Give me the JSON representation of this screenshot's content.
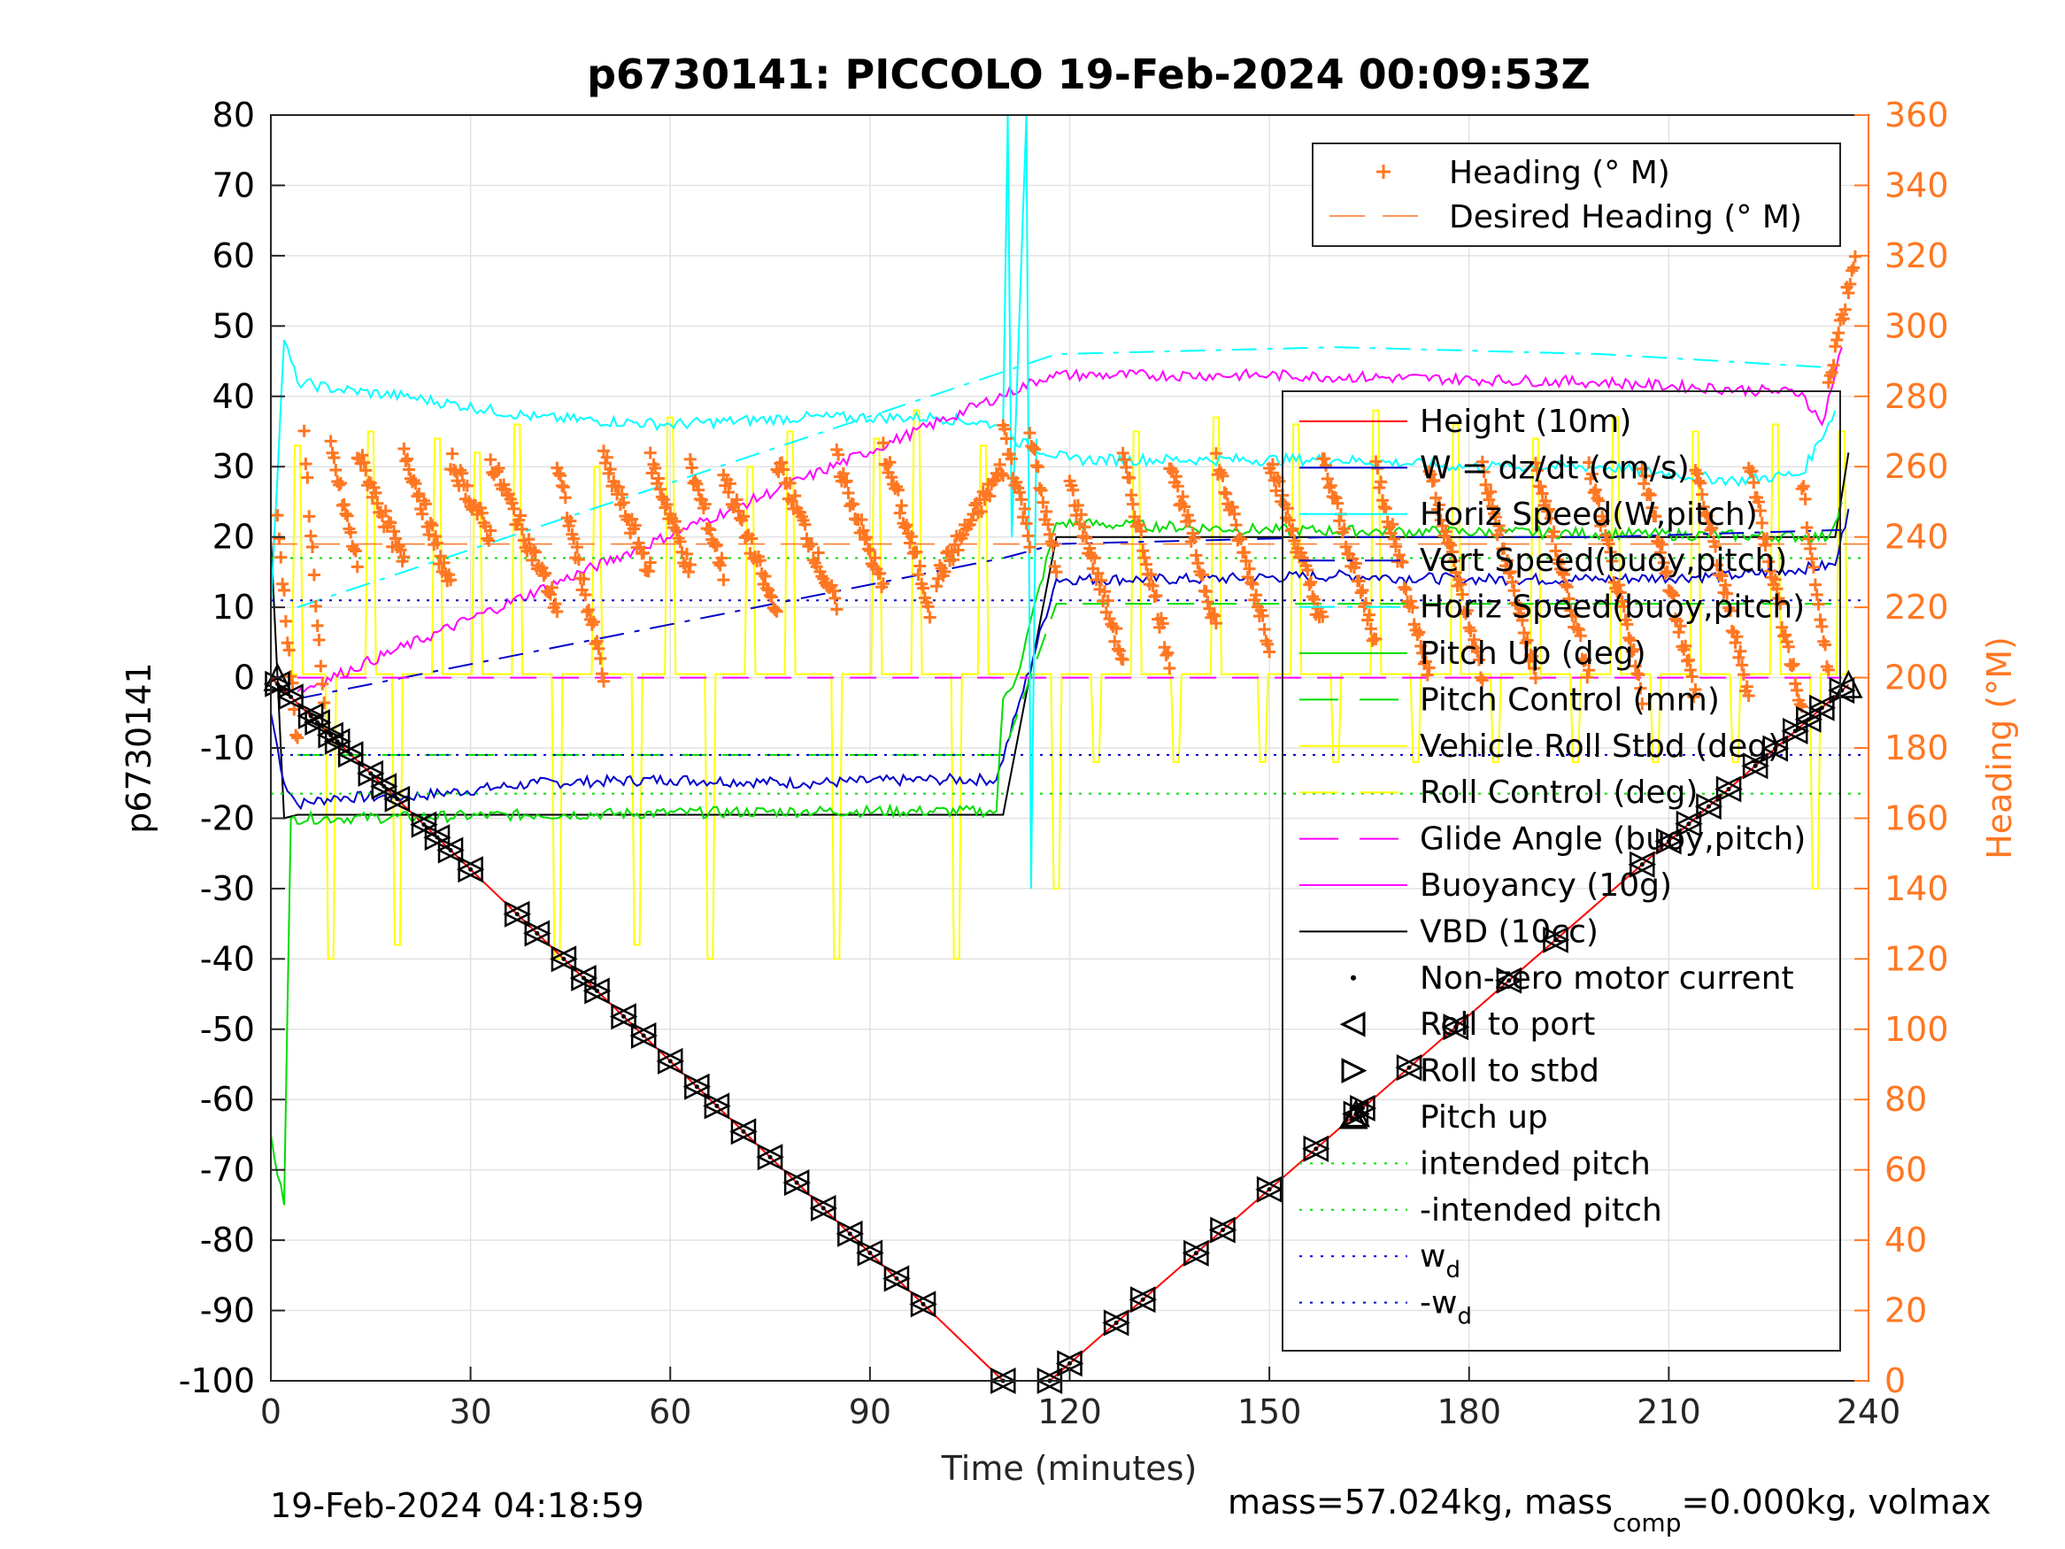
{
  "chart_data": {
    "type": "line",
    "title": "p6730141: PICCOLO 19-Feb-2024 00:09:53Z",
    "xlabel": "Time (minutes)",
    "ylabel": "p6730141",
    "y2label": "Heading (°M)",
    "xlim": [
      0,
      240
    ],
    "ylim": [
      -100,
      80
    ],
    "y2lim": [
      0,
      360
    ],
    "x_ticks": [
      "0",
      "30",
      "60",
      "90",
      "120",
      "150",
      "180",
      "210",
      "240"
    ],
    "y_ticks": [
      "-100",
      "-90",
      "-80",
      "-70",
      "-60",
      "-50",
      "-40",
      "-30",
      "-20",
      "-10",
      "0",
      "10",
      "20",
      "30",
      "40",
      "50",
      "60",
      "70",
      "80"
    ],
    "y2_ticks": [
      "0",
      "20",
      "40",
      "60",
      "80",
      "100",
      "120",
      "140",
      "160",
      "180",
      "200",
      "220",
      "240",
      "260",
      "280",
      "300",
      "320",
      "340",
      "360"
    ],
    "grid": true,
    "legend_top": [
      "Heading (° M)",
      "Desired Heading (° M)"
    ],
    "legend_main": [
      "Height (10m)",
      "W = dz/dt (cm/s)",
      "Horiz Speed(W,pitch)",
      "Vert Speed(buoy,pitch)",
      "Horiz Speed(buoy,pitch)",
      "Pitch Up (deg)",
      "Pitch Control (mm)",
      "Vehicle Roll Stbd (deg)",
      "Roll Control (deg)",
      "Glide Angle (buoy,pitch)",
      "Buoyancy (10g)",
      "VBD (10cc)",
      "Non-zero motor current",
      "Roll to port",
      "Roll to stbd",
      "Pitch up",
      "intended pitch",
      "-intended pitch",
      "w_d",
      "-w_d"
    ],
    "wd_label_base": "w",
    "wd_label_sub": "d",
    "neg_wd_label_base": "-w",
    "footer_left": "19-Feb-2024 04:18:59",
    "footer_right_a": "mass=57.024kg, mass",
    "footer_right_sub": "comp",
    "footer_right_b": "=0.000kg, volmax",
    "series": [
      {
        "name": "Height (10m)",
        "color": "#ff0000",
        "x": [
          0,
          110,
          117,
          237
        ],
        "y": [
          0,
          -100,
          -100,
          -1
        ]
      },
      {
        "name": "VBD (10cc)",
        "color": "#000000",
        "x": [
          0,
          2,
          4,
          20,
          110,
          118,
          235,
          237
        ],
        "y": [
          20,
          -20,
          -19.5,
          -19.5,
          -19.5,
          20,
          20,
          32
        ]
      },
      {
        "name": "W = dz/dt (cm/s)",
        "color": "#0000cc",
        "x": [
          0,
          2,
          4,
          10,
          20,
          40,
          60,
          80,
          100,
          109,
          112,
          118,
          140,
          160,
          180,
          200,
          220,
          235,
          237
        ],
        "y": [
          -5,
          -15,
          -18,
          -17,
          -17,
          -15,
          -14.5,
          -15,
          -14.5,
          -14.5,
          -5,
          14,
          14,
          14.5,
          14,
          14,
          14.5,
          16,
          24
        ]
      },
      {
        "name": "Pitch Up (deg)",
        "color": "#00dd00",
        "x": [
          0,
          2,
          3,
          10,
          40,
          80,
          109,
          110,
          112,
          118,
          150,
          200,
          234,
          236
        ],
        "y": [
          -65,
          -75,
          -20,
          -20,
          -19.5,
          -19,
          -19,
          -3,
          0,
          22,
          21,
          20.5,
          20,
          25
        ]
      },
      {
        "name": "Horiz Speed(W,pitch)",
        "color": "#00ffff",
        "x": [
          0,
          2,
          4,
          10,
          20,
          40,
          60,
          80,
          100,
          109
        ],
        "y": [
          10,
          48,
          42,
          41,
          40,
          37,
          36,
          37,
          37,
          36
        ]
      },
      {
        "name": "Horiz Speed(W,pitch) asc",
        "color": "#00ffff",
        "x": [
          111,
          120,
          140,
          160,
          180,
          200,
          220,
          230,
          235
        ],
        "y": [
          34,
          31,
          31,
          31,
          30,
          30,
          28,
          29,
          38
        ]
      },
      {
        "name": "Vert Speed(buoy,pitch)",
        "color": "#0000cc",
        "dash": "28,12,6,12",
        "x": [
          4,
          110,
          118,
          160,
          200,
          236
        ],
        "y": [
          -3,
          17,
          19,
          20,
          20,
          21
        ]
      },
      {
        "name": "Horiz Speed(buoy,pitch)",
        "color": "#00ffff",
        "dash": "28,12,6,12",
        "x": [
          4,
          118,
          160,
          200,
          236
        ],
        "y": [
          10,
          46,
          47,
          46,
          44
        ]
      },
      {
        "name": "Buoyancy (10g)",
        "color": "#ff00ff",
        "x": [
          4,
          117,
          150,
          200,
          230,
          233,
          236
        ],
        "y": [
          -2,
          43,
          43,
          42,
          40.5,
          36,
          47
        ]
      },
      {
        "name": "Glide Angle (buoy,pitch)",
        "color": "#ff00ff",
        "dash": "30,18",
        "x": [
          4,
          236
        ],
        "y": [
          0,
          0
        ]
      },
      {
        "name": "Pitch Control (mm)",
        "color": "#00dd00",
        "dash": "30,18",
        "x": [
          4,
          110,
          118,
          236
        ],
        "y": [
          -11,
          -11,
          10.5,
          10.5
        ]
      },
      {
        "name": "intended pitch",
        "color": "#00dd00",
        "dash": "3,8",
        "x": [
          0,
          240
        ],
        "y": [
          17,
          17
        ]
      },
      {
        "name": "-intended pitch",
        "color": "#00dd00",
        "dash": "3,8",
        "x": [
          0,
          240
        ],
        "y": [
          -16.5,
          -16.5
        ]
      },
      {
        "name": "w_d",
        "color": "#0000cc",
        "dash": "3,8",
        "x": [
          0,
          240
        ],
        "y": [
          11,
          11
        ]
      },
      {
        "name": "-w_d",
        "color": "#0000cc",
        "dash": "3,8",
        "x": [
          0,
          240
        ],
        "y": [
          -11,
          -11
        ]
      }
    ],
    "heading": {
      "name": "Heading (° M)",
      "color": "#ff7722",
      "desired_name": "Desired Heading (° M)",
      "desired_value": 238,
      "sweeps": [
        {
          "x": [
            1,
            4
          ],
          "y": [
            245,
            180
          ]
        },
        {
          "x": [
            5,
            8
          ],
          "y": [
            268,
            190
          ]
        },
        {
          "x": [
            9,
            13
          ],
          "y": [
            265,
            232
          ]
        },
        {
          "x": [
            13,
            20
          ],
          "y": [
            264,
            232
          ]
        },
        {
          "x": [
            20,
            27
          ],
          "y": [
            265,
            225
          ]
        },
        {
          "x": [
            27,
            33
          ],
          "y": [
            262,
            240
          ]
        },
        {
          "x": [
            33,
            43
          ],
          "y": [
            262,
            220
          ]
        },
        {
          "x": [
            43,
            50
          ],
          "y": [
            260,
            200
          ]
        },
        {
          "x": [
            50,
            57
          ],
          "y": [
            262,
            230
          ]
        },
        {
          "x": [
            57,
            63
          ],
          "y": [
            262,
            230
          ]
        },
        {
          "x": [
            63,
            68
          ],
          "y": [
            260,
            230
          ]
        },
        {
          "x": [
            68,
            76
          ],
          "y": [
            258,
            218
          ]
        },
        {
          "x": [
            76,
            85
          ],
          "y": [
            262,
            220
          ]
        },
        {
          "x": [
            85,
            92
          ],
          "y": [
            262,
            225
          ]
        },
        {
          "x": [
            92,
            99
          ],
          "y": [
            265,
            220
          ]
        },
        {
          "x": [
            100,
            110
          ],
          "y": [
            228,
            260
          ]
        },
        {
          "x": [
            110,
            114
          ],
          "y": [
            271,
            240
          ]
        },
        {
          "x": [
            114,
            118
          ],
          "y": [
            270,
            230
          ]
        },
        {
          "x": [
            120,
            128
          ],
          "y": [
            255,
            205
          ]
        },
        {
          "x": [
            128,
            135
          ],
          "y": [
            262,
            205
          ]
        },
        {
          "x": [
            135,
            142
          ],
          "y": [
            262,
            215
          ]
        },
        {
          "x": [
            142,
            150
          ],
          "y": [
            262,
            210
          ]
        },
        {
          "x": [
            150,
            158
          ],
          "y": [
            262,
            215
          ]
        },
        {
          "x": [
            158,
            166
          ],
          "y": [
            262,
            210
          ]
        },
        {
          "x": [
            166,
            174
          ],
          "y": [
            260,
            200
          ]
        },
        {
          "x": [
            174,
            182
          ],
          "y": [
            260,
            200
          ]
        },
        {
          "x": [
            182,
            190
          ],
          "y": [
            260,
            200
          ]
        },
        {
          "x": [
            190,
            198
          ],
          "y": [
            260,
            200
          ]
        },
        {
          "x": [
            198,
            206
          ],
          "y": [
            260,
            195
          ]
        },
        {
          "x": [
            206,
            214
          ],
          "y": [
            260,
            195
          ]
        },
        {
          "x": [
            214,
            222
          ],
          "y": [
            260,
            195
          ]
        },
        {
          "x": [
            222,
            230
          ],
          "y": [
            262,
            190
          ]
        },
        {
          "x": [
            230,
            234
          ],
          "y": [
            255,
            200
          ]
        },
        {
          "x": [
            234,
            238
          ],
          "y": [
            285,
            320
          ]
        }
      ]
    },
    "roll_control_spikes": {
      "name": "Roll Control (deg)",
      "color": "#ffff00",
      "base": 0.5,
      "x": [
        4,
        9,
        15,
        19,
        25,
        31,
        37,
        43,
        49,
        55,
        60,
        66,
        72,
        78,
        85,
        91,
        97,
        103,
        107,
        118,
        124,
        130,
        136,
        142,
        149,
        154,
        160,
        166,
        172,
        178,
        184,
        190,
        196,
        202,
        208,
        214,
        220,
        226,
        232,
        236
      ],
      "y": [
        33,
        -40,
        35,
        -38,
        34,
        32,
        36,
        -40,
        30,
        -38,
        37,
        -40,
        30,
        35,
        -40,
        34,
        38,
        -40,
        33,
        -30,
        -12,
        35,
        -12,
        37,
        -12,
        36,
        -12,
        38,
        -12,
        36,
        -12,
        34,
        -12,
        37,
        -12,
        35,
        -12,
        36,
        -30,
        35
      ]
    },
    "markers": {
      "name": "Roll to port / Roll to stbd / Pitch up",
      "x": [
        1,
        3,
        6,
        7,
        9,
        10,
        12,
        15,
        17,
        19,
        23,
        25,
        27,
        30,
        37,
        40,
        44,
        47,
        49,
        53,
        56,
        60,
        64,
        67,
        71,
        75,
        79,
        83,
        87,
        90,
        94,
        98,
        110,
        117,
        120,
        127,
        131,
        139,
        143,
        150,
        157,
        163,
        164,
        171,
        178,
        186,
        193,
        206,
        210,
        213,
        216,
        219,
        223,
        226,
        229,
        231,
        233,
        236
      ]
    }
  }
}
